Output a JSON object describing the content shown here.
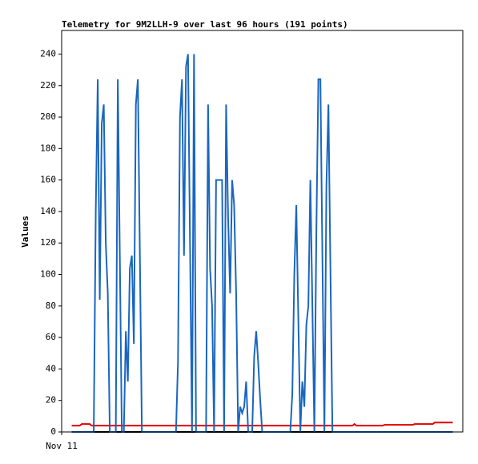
{
  "chart_data": {
    "type": "line",
    "title": "Telemetry for 9M2LLH-9 over last 96 hours (191 points)",
    "ylabel": "Values",
    "xlim": [
      -5,
      195
    ],
    "xticks": [
      {
        "value": -5,
        "label": "Nov 11"
      }
    ],
    "ylim": [
      0,
      255
    ],
    "yticks": [
      0,
      20,
      40,
      60,
      80,
      100,
      120,
      140,
      160,
      180,
      200,
      220,
      240
    ],
    "series": [
      {
        "color": "#000000",
        "values": [
          0,
          0,
          0,
          0,
          0,
          0,
          0,
          0,
          0,
          0,
          0,
          0,
          0,
          0,
          0,
          0,
          0,
          0,
          0,
          0,
          0,
          0,
          0,
          0,
          0,
          0,
          0,
          0,
          0,
          0,
          0,
          0,
          0,
          0,
          0,
          0,
          0,
          0,
          0,
          0,
          0,
          0,
          0,
          0,
          0,
          0,
          0,
          0,
          0,
          0,
          0,
          0,
          0,
          0,
          0,
          0,
          0,
          0,
          0,
          0,
          0,
          0,
          0,
          0,
          0,
          0,
          0,
          0,
          0,
          0,
          0,
          0,
          0,
          0,
          0,
          0,
          0,
          0,
          0,
          0,
          0,
          0,
          0,
          0,
          0,
          0,
          0,
          0,
          0,
          0,
          0,
          0,
          0,
          0,
          0,
          0,
          0,
          0,
          0,
          0,
          0,
          0,
          0,
          0,
          0,
          0,
          0,
          0,
          0,
          0,
          0,
          0,
          0,
          0,
          0,
          0,
          0,
          0,
          0,
          0,
          0,
          0,
          0,
          0,
          0,
          0,
          0,
          0,
          0,
          0,
          0,
          0,
          0,
          0,
          0,
          0,
          0,
          0,
          0,
          0,
          0,
          0,
          0,
          0,
          0,
          0,
          0,
          0,
          0,
          0,
          0,
          0,
          0,
          0,
          0,
          0,
          0,
          0,
          0,
          0,
          0,
          0,
          0,
          0,
          0,
          0,
          0,
          0,
          0,
          0,
          0,
          0,
          0,
          0,
          0,
          0,
          0,
          0,
          0,
          0,
          0,
          0,
          0,
          0,
          0,
          0,
          0,
          0,
          0,
          0,
          0
        ]
      },
      {
        "color": "#e00000",
        "values": [
          4,
          4,
          4,
          4,
          4,
          5,
          5,
          5,
          5,
          5,
          4,
          4,
          4,
          4,
          4,
          4,
          4,
          4,
          4,
          4,
          4,
          4,
          4,
          4,
          4,
          4,
          4,
          4,
          4,
          4,
          4,
          4,
          4,
          4,
          4,
          4,
          4,
          4,
          4,
          4,
          4,
          4,
          4,
          4,
          4,
          4,
          4,
          4,
          4,
          4,
          4,
          4,
          4,
          4,
          4,
          4,
          4,
          4,
          4,
          4,
          4,
          4,
          4,
          4,
          4,
          4,
          4,
          4,
          4,
          4,
          4,
          4,
          4,
          4,
          4,
          4,
          4,
          4,
          4,
          4,
          4,
          4,
          4,
          4,
          4,
          4,
          4,
          4,
          4,
          4,
          4,
          4,
          4,
          4,
          4,
          4,
          4,
          4,
          4,
          4,
          4,
          4,
          4,
          4,
          4,
          4,
          4,
          4,
          4,
          4,
          4,
          4,
          4,
          4,
          4,
          4,
          4,
          4,
          4,
          4,
          4,
          4,
          4,
          4,
          4,
          4,
          4,
          4,
          4,
          4,
          4,
          4,
          4,
          4,
          4,
          4,
          4,
          4,
          4,
          4,
          4,
          5,
          4,
          4,
          4,
          4,
          4,
          4,
          4,
          4,
          4,
          4,
          4,
          4,
          4,
          4,
          4.5,
          4.5,
          4.5,
          4.5,
          4.5,
          4.5,
          4.5,
          4.5,
          4.5,
          4.5,
          4.5,
          4.5,
          4.5,
          4.5,
          4.5,
          5,
          5,
          5,
          5,
          5,
          5,
          5,
          5,
          5,
          5,
          6,
          6,
          6,
          6,
          6,
          6,
          6,
          6,
          6,
          6
        ]
      },
      {
        "color": "#1a66c0",
        "values": [
          0,
          0,
          0,
          0,
          0,
          0,
          0,
          0,
          0,
          0,
          0,
          0,
          140,
          224,
          84,
          196,
          208,
          120,
          88,
          0,
          0,
          0,
          0,
          224,
          112,
          0,
          0,
          64,
          32,
          104,
          112,
          56,
          208,
          224,
          112,
          0,
          0,
          0,
          0,
          0,
          0,
          0,
          0,
          0,
          0,
          0,
          0,
          0,
          0,
          0,
          0,
          0,
          0,
          44,
          200,
          224,
          112,
          232,
          240,
          120,
          0,
          240,
          0,
          0,
          0,
          0,
          0,
          0,
          208,
          104,
          80,
          0,
          160,
          160,
          160,
          160,
          0,
          208,
          136,
          88,
          160,
          144,
          88,
          0,
          16,
          12,
          16,
          32,
          0,
          0,
          0,
          48,
          64,
          44,
          20,
          0,
          0,
          0,
          0,
          0,
          0,
          0,
          0,
          0,
          0,
          0,
          0,
          0,
          0,
          0,
          24,
          100,
          144,
          72,
          0,
          32,
          16,
          68,
          80,
          160,
          80,
          0,
          128,
          224,
          224,
          112,
          0,
          156,
          208,
          104,
          0,
          0,
          0,
          0,
          0,
          0,
          0,
          0,
          0,
          0,
          0,
          0,
          0,
          0,
          0,
          0,
          0,
          0,
          0,
          0,
          0,
          0,
          0,
          0,
          0,
          0,
          0,
          0,
          0,
          0,
          0,
          0,
          0,
          0,
          0,
          0,
          0,
          0,
          0,
          0,
          0,
          0,
          0,
          0,
          0,
          0,
          0,
          0,
          0,
          0,
          0,
          0,
          0,
          0,
          0,
          0,
          0,
          0,
          0,
          0,
          0
        ]
      }
    ]
  }
}
